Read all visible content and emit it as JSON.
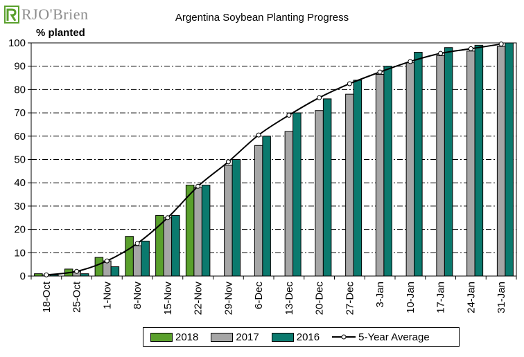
{
  "logo": {
    "text": "RJO'Brien"
  },
  "chart_data": {
    "type": "bar",
    "title": "Argentina Soybean Planting Progress",
    "ylabel": "% planted",
    "xlabel": "",
    "ylim": [
      0,
      100
    ],
    "yticks": [
      0,
      10,
      20,
      30,
      40,
      50,
      60,
      70,
      80,
      90,
      100
    ],
    "grid": true,
    "legend_position": "bottom",
    "categories": [
      "18-Oct",
      "25-Oct",
      "1-Nov",
      "8-Nov",
      "15-Nov",
      "22-Nov",
      "29-Nov",
      "6-Dec",
      "13-Dec",
      "20-Dec",
      "27-Dec",
      "3-Jan",
      "10-Jan",
      "17-Jan",
      "24-Jan",
      "31-Jan"
    ],
    "series": [
      {
        "name": "2018",
        "type": "bar",
        "color": "#5aa02c",
        "values": [
          1,
          3,
          8,
          17,
          26,
          39,
          null,
          null,
          null,
          null,
          null,
          null,
          null,
          null,
          null,
          null
        ]
      },
      {
        "name": "2017",
        "type": "bar",
        "color": "#a6a6a6",
        "values": [
          0.5,
          2,
          6.5,
          13,
          25,
          38,
          47.5,
          56,
          62,
          71,
          78,
          86.5,
          91.5,
          94.5,
          96.5,
          98.5
        ]
      },
      {
        "name": "2016",
        "type": "bar",
        "color": "#0b7a6e",
        "values": [
          0.5,
          1,
          4,
          15,
          26,
          39,
          50,
          60,
          70,
          76,
          84,
          90,
          96,
          98,
          99,
          100
        ]
      },
      {
        "name": "5-Year Average",
        "type": "line",
        "color": "#000000",
        "values": [
          0.5,
          2,
          6.5,
          14,
          25,
          38.5,
          49,
          60.5,
          69,
          76.5,
          82.5,
          87.5,
          92,
          95.5,
          97.5,
          99.5
        ]
      }
    ]
  }
}
